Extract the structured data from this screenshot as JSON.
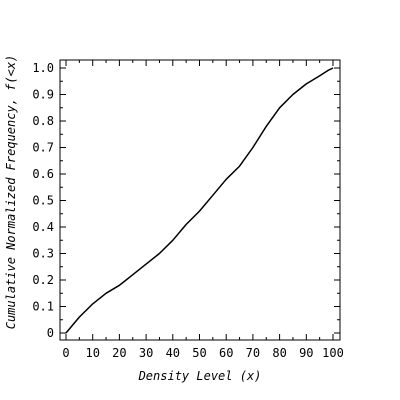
{
  "chart_data": {
    "type": "line",
    "title": "",
    "xlabel": "Density Level (x)",
    "ylabel": "Cumulative Normalized Frequency, f(<x)",
    "xlim": [
      0,
      100
    ],
    "ylim": [
      0,
      1.0
    ],
    "grid": false,
    "legend": "none",
    "xticks": [
      0,
      10,
      20,
      30,
      40,
      50,
      60,
      70,
      80,
      90,
      100
    ],
    "xtick_labels": [
      "0",
      "10",
      "20",
      "30",
      "40",
      "50",
      "60",
      "70",
      "80",
      "90",
      "100"
    ],
    "yticks": [
      0,
      0.1,
      0.2,
      0.3,
      0.4,
      0.5,
      0.6,
      0.7,
      0.8,
      0.9,
      1.0
    ],
    "ytick_labels": [
      "0",
      "0.1",
      "0.2",
      "0.3",
      "0.4",
      "0.5",
      "0.6",
      "0.7",
      "0.8",
      "0.9",
      "1.0"
    ],
    "line_color": "#000000",
    "series": [
      {
        "x": [
          0,
          5,
          10,
          15,
          20,
          25,
          30,
          35,
          40,
          45,
          50,
          55,
          60,
          65,
          70,
          75,
          80,
          85,
          90,
          95,
          98,
          100
        ],
        "y": [
          0.0,
          0.06,
          0.11,
          0.15,
          0.18,
          0.22,
          0.26,
          0.3,
          0.35,
          0.41,
          0.46,
          0.52,
          0.58,
          0.63,
          0.7,
          0.78,
          0.85,
          0.9,
          0.94,
          0.97,
          0.99,
          1.0
        ]
      }
    ]
  }
}
